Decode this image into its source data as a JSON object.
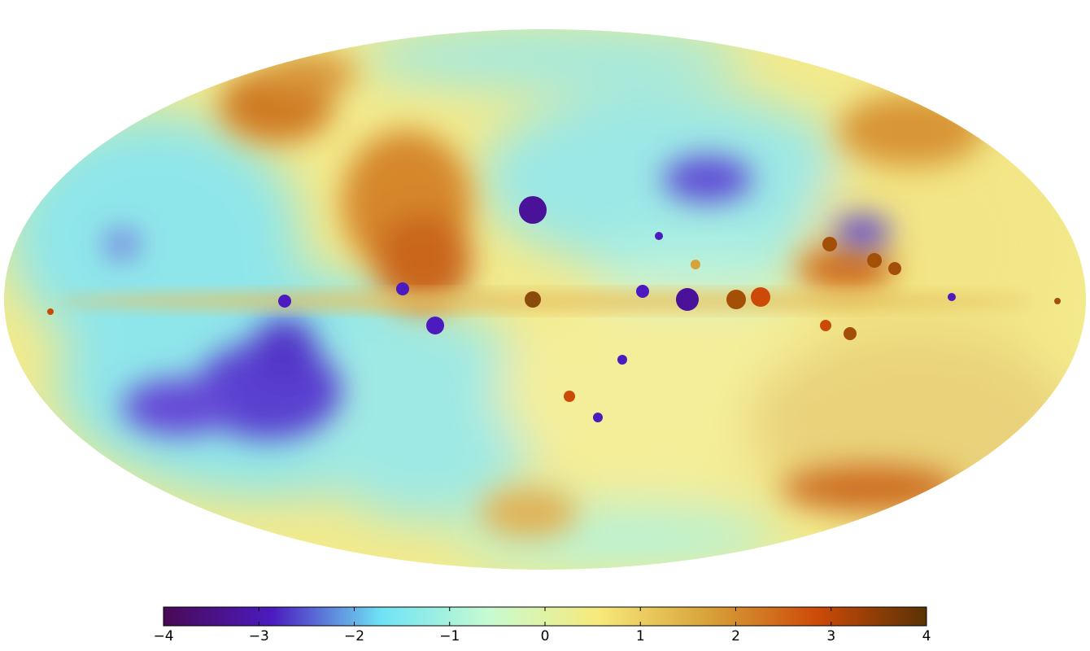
{
  "map": {
    "projection": "mollweide",
    "colormap": [
      "#4a0a55",
      "#4b1bbf",
      "#6fe3f5",
      "#c8fbd0",
      "#f7e97a",
      "#d8a23a",
      "#cc4a08",
      "#5a3205"
    ],
    "features": [
      {
        "kind": "galactic-plane-band",
        "value": 0.8
      },
      {
        "kind": "cold-region",
        "label": "southern-cold-cloud",
        "value": -3.2
      },
      {
        "kind": "hot-region",
        "label": "northern-hot-arc",
        "value": 2.6
      }
    ]
  },
  "colorbar": {
    "min": -4,
    "max": 4,
    "ticks": [
      {
        "value": -4,
        "label": "−4"
      },
      {
        "value": -3,
        "label": "−3"
      },
      {
        "value": -2,
        "label": "−2"
      },
      {
        "value": -1,
        "label": "−1"
      },
      {
        "value": 0,
        "label": "0"
      },
      {
        "value": 1,
        "label": "1"
      },
      {
        "value": 2,
        "label": "2"
      },
      {
        "value": 3,
        "label": "3"
      },
      {
        "value": 4,
        "label": "4"
      }
    ]
  }
}
